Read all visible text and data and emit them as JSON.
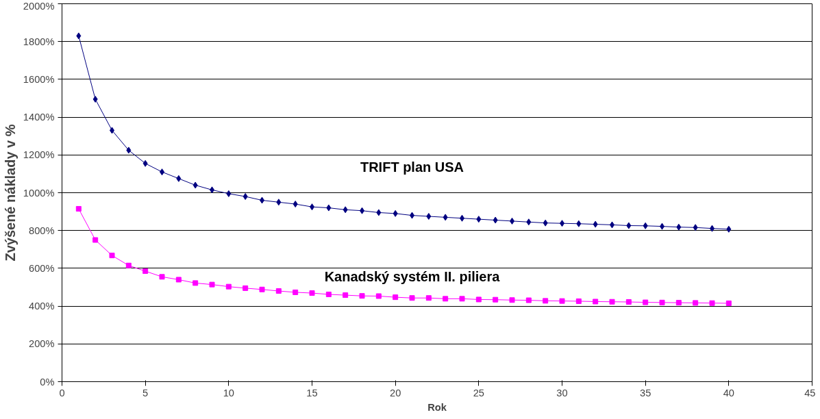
{
  "chart_data": {
    "type": "line",
    "xlabel": "Rok",
    "ylabel": "Zvýšené náklady v %",
    "x": [
      1,
      2,
      3,
      4,
      5,
      6,
      7,
      8,
      9,
      10,
      11,
      12,
      13,
      14,
      15,
      16,
      17,
      18,
      19,
      20,
      21,
      22,
      23,
      24,
      25,
      26,
      27,
      28,
      29,
      30,
      31,
      32,
      33,
      34,
      35,
      36,
      37,
      38,
      39,
      40
    ],
    "series": [
      {
        "name": "TRIFT plan USA",
        "color": "#000080",
        "marker": "diamond",
        "values": [
          1830,
          1495,
          1330,
          1225,
          1155,
          1110,
          1075,
          1040,
          1015,
          995,
          980,
          960,
          950,
          940,
          925,
          920,
          910,
          905,
          895,
          890,
          880,
          875,
          870,
          865,
          860,
          855,
          850,
          845,
          840,
          838,
          836,
          833,
          830,
          826,
          825,
          822,
          818,
          816,
          811,
          807
        ]
      },
      {
        "name": "Kanadský systém II. piliera",
        "color": "#ff00ff",
        "marker": "square",
        "values": [
          915,
          750,
          668,
          615,
          585,
          555,
          540,
          522,
          514,
          503,
          495,
          488,
          480,
          473,
          469,
          462,
          458,
          454,
          453,
          447,
          443,
          443,
          439,
          439,
          435,
          434,
          432,
          431,
          428,
          427,
          426,
          424,
          423,
          422,
          420,
          419,
          418,
          417,
          416,
          415
        ]
      }
    ],
    "xlim": [
      0,
      45
    ],
    "xticks": [
      0,
      5,
      10,
      15,
      20,
      25,
      30,
      35,
      40,
      45
    ],
    "ylim": [
      0,
      2000
    ],
    "yticks": [
      {
        "value": 0,
        "label": "0%"
      },
      {
        "value": 200,
        "label": "200%"
      },
      {
        "value": 400,
        "label": "400%"
      },
      {
        "value": 600,
        "label": "600%"
      },
      {
        "value": 800,
        "label": "800%"
      },
      {
        "value": 1000,
        "label": "1000%"
      },
      {
        "value": 1200,
        "label": "1200%"
      },
      {
        "value": 1400,
        "label": "1400%"
      },
      {
        "value": 1600,
        "label": "1600%"
      },
      {
        "value": 1800,
        "label": "1800%"
      },
      {
        "value": 2000,
        "label": "2000%"
      }
    ],
    "grid": "y",
    "line_style": "solid"
  }
}
